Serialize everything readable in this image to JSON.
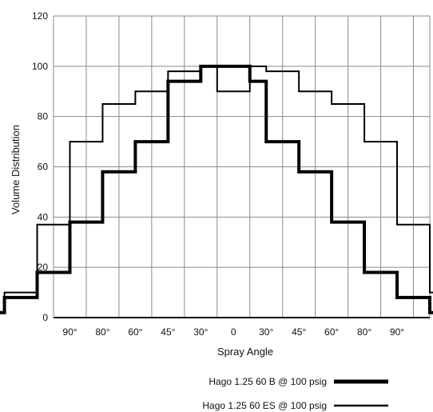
{
  "chart_data": {
    "type": "line",
    "step": true,
    "xlabel": "Spray Angle",
    "ylabel": "Volume Distribution",
    "ylim": [
      0,
      120
    ],
    "yticks": [
      0,
      20,
      40,
      60,
      80,
      100,
      120
    ],
    "x_tick_labels": [
      "90°",
      "80°",
      "60°",
      "45°",
      "30°",
      "0",
      "30°",
      "45°",
      "60°",
      "80°",
      "90°"
    ],
    "grid": true,
    "legend_position": "bottom-right",
    "x_edges": [
      -11,
      -10,
      -9,
      -8,
      -7,
      -6,
      -5,
      -4,
      -3,
      -2,
      -1,
      -0.5,
      0.5,
      1,
      2,
      3,
      4,
      5,
      6,
      7,
      8,
      9,
      10,
      11
    ],
    "series": [
      {
        "name": "Hago 1.25 60 B @ 100 psig",
        "style": "thick",
        "color": "#000000",
        "values": [
          0,
          0,
          0,
          2,
          8,
          18,
          38,
          58,
          70,
          94,
          100,
          100,
          94,
          70,
          58,
          38,
          18,
          8,
          2,
          0,
          0,
          0,
          0
        ]
      },
      {
        "name": "Hago 1.25 60 ES @ 100 psig",
        "style": "thin",
        "color": "#000000",
        "values": [
          0,
          0,
          0,
          2,
          10,
          37,
          70,
          85,
          90,
          98,
          100,
          90,
          100,
          98,
          90,
          85,
          70,
          37,
          10,
          2,
          0,
          0,
          0
        ]
      }
    ]
  }
}
